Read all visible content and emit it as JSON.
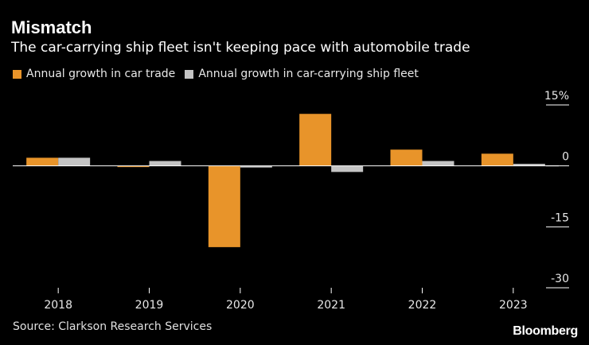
{
  "chart_data": {
    "type": "bar",
    "title": "Mismatch",
    "subtitle": "The car-carrying ship fleet isn't keeping pace with automobile trade",
    "categories": [
      "2018",
      "2019",
      "2020",
      "2021",
      "2022",
      "2023"
    ],
    "series": [
      {
        "name": "Annual growth in car trade",
        "color": "#e8942a",
        "values": [
          2.0,
          -0.2,
          -20.0,
          12.8,
          4.0,
          3.0
        ]
      },
      {
        "name": "Annual growth in car-carrying ship fleet",
        "color": "#c4c4c4",
        "values": [
          2.0,
          1.2,
          -0.4,
          -1.5,
          1.2,
          0.5
        ]
      }
    ],
    "yticks": [
      {
        "value": 15,
        "label": "15%"
      },
      {
        "value": 0,
        "label": "0"
      },
      {
        "value": -15,
        "label": "-15"
      },
      {
        "value": -30,
        "label": "-30"
      }
    ],
    "ylim": [
      -30,
      15
    ],
    "xlabel": "",
    "ylabel": "",
    "grid": false,
    "legend_position": "top-left",
    "source": "Source: Clarkson Research Services",
    "brand": "Bloomberg"
  }
}
